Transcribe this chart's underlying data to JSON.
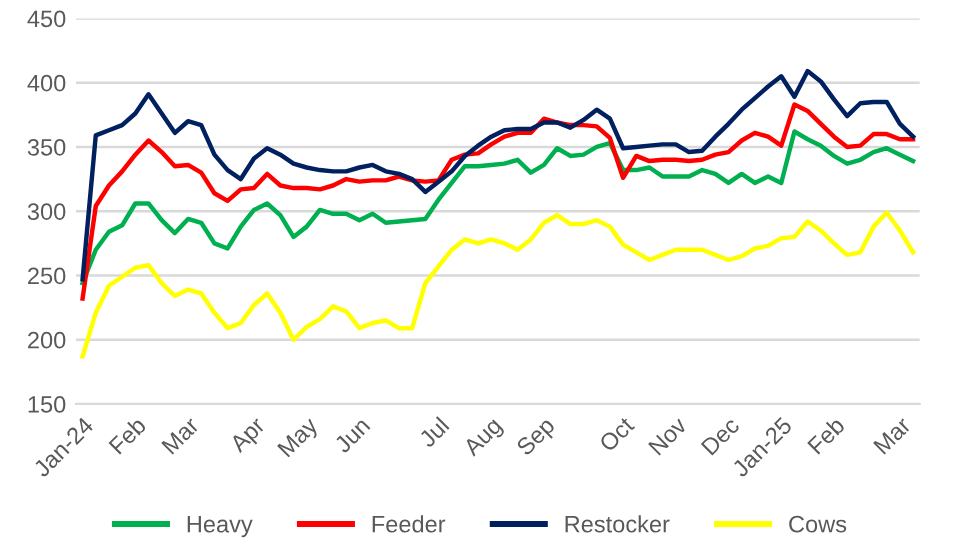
{
  "chart_data": {
    "type": "line",
    "categories": [
      "Jan-24",
      null,
      null,
      null,
      "Feb",
      null,
      null,
      null,
      "Mar",
      null,
      null,
      null,
      null,
      "Apr",
      null,
      null,
      null,
      "May",
      null,
      null,
      null,
      "Jun",
      null,
      null,
      null,
      null,
      null,
      "Jul",
      null,
      null,
      null,
      "Aug",
      null,
      null,
      null,
      "Sep",
      null,
      null,
      null,
      null,
      null,
      "Oct",
      null,
      null,
      null,
      "Nov",
      null,
      null,
      null,
      "Dec",
      null,
      null,
      null,
      "Jan-25",
      null,
      null,
      null,
      "Feb",
      null,
      null,
      null,
      null,
      "Mar",
      null
    ],
    "series": [
      {
        "name": "Heavy",
        "color": "#00b050",
        "values": [
          244,
          270,
          284,
          289,
          306,
          306,
          293,
          283,
          294,
          291,
          275,
          271,
          288,
          301,
          306,
          297,
          280,
          288,
          301,
          298,
          298,
          293,
          298,
          291,
          292,
          293,
          294,
          309,
          322,
          335,
          335,
          336,
          337,
          340,
          330,
          336,
          349,
          343,
          344,
          350,
          353,
          332,
          332,
          334,
          327,
          327,
          327,
          332,
          329,
          322,
          329,
          322,
          327,
          322,
          362,
          356,
          351,
          343,
          337,
          340,
          346,
          349,
          344,
          339
        ]
      },
      {
        "name": "Feeder",
        "color": "#ff0000",
        "values": [
          232,
          304,
          320,
          331,
          344,
          355,
          346,
          335,
          336,
          330,
          314,
          308,
          317,
          318,
          329,
          320,
          318,
          318,
          317,
          320,
          325,
          323,
          324,
          324,
          327,
          324,
          323,
          324,
          340,
          344,
          345,
          352,
          358,
          361,
          361,
          372,
          369,
          367,
          367,
          366,
          357,
          326,
          343,
          339,
          340,
          340,
          339,
          340,
          344,
          346,
          355,
          361,
          358,
          351,
          383,
          378,
          368,
          358,
          350,
          351,
          360,
          360,
          356,
          356
        ]
      },
      {
        "name": "Restocker",
        "color": "#002060",
        "values": [
          247,
          359,
          363,
          367,
          376,
          391,
          376,
          361,
          370,
          367,
          344,
          332,
          325,
          341,
          349,
          344,
          337,
          334,
          332,
          331,
          331,
          334,
          336,
          331,
          329,
          325,
          315,
          323,
          331,
          343,
          351,
          358,
          363,
          364,
          364,
          369,
          369,
          365,
          371,
          379,
          372,
          349,
          350,
          351,
          352,
          352,
          346,
          347,
          358,
          368,
          379,
          388,
          397,
          405,
          389,
          409,
          401,
          387,
          374,
          384,
          385,
          385,
          368,
          358
        ]
      },
      {
        "name": "Cows",
        "color": "#ffff00",
        "values": [
          187,
          221,
          242,
          249,
          256,
          258,
          244,
          234,
          239,
          236,
          221,
          209,
          213,
          227,
          236,
          221,
          200,
          210,
          216,
          226,
          222,
          209,
          213,
          215,
          209,
          209,
          244,
          257,
          270,
          278,
          275,
          278,
          275,
          270,
          278,
          291,
          297,
          290,
          290,
          293,
          288,
          274,
          268,
          262,
          266,
          270,
          270,
          270,
          266,
          262,
          265,
          271,
          273,
          279,
          280,
          292,
          285,
          275,
          266,
          268,
          288,
          299,
          285,
          268
        ]
      }
    ],
    "ylim": [
      150,
      450
    ],
    "yticks": [
      150,
      200,
      250,
      300,
      350,
      400,
      450
    ],
    "grid": "y",
    "legend": "bottom",
    "marker": "none",
    "line_style": "solid"
  }
}
